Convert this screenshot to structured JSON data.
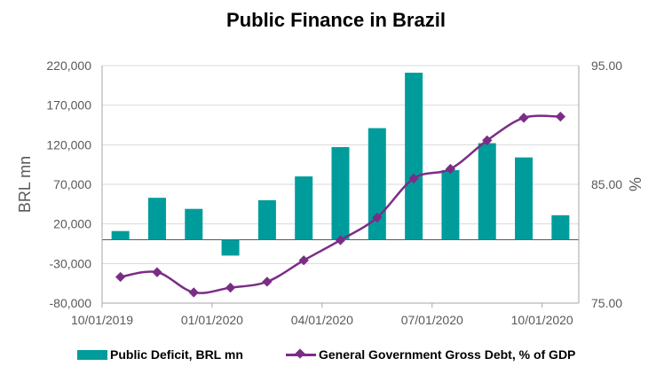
{
  "chart_data": {
    "type": "bar",
    "title": "Public Finance in Brazil",
    "ylabel": "BRL mn",
    "y2label": "%",
    "ylim": [
      -80000,
      220000
    ],
    "y_ticks": [
      "220,000",
      "170,000",
      "120,000",
      "70,000",
      "20,000",
      "-30,000",
      "-80,000"
    ],
    "y_tick_values": [
      220000,
      170000,
      120000,
      70000,
      20000,
      -30000,
      -80000
    ],
    "y2lim": [
      75,
      95
    ],
    "y2_ticks": [
      "95.00",
      "85.00",
      "75.00"
    ],
    "y2_tick_values": [
      95,
      85,
      75
    ],
    "x_ticks": [
      "10/01/2019",
      "01/01/2020",
      "04/01/2020",
      "07/01/2020",
      "10/01/2020"
    ],
    "categories": [
      "10/2019",
      "11/2019",
      "12/2019",
      "01/2020",
      "02/2020",
      "03/2020",
      "04/2020",
      "05/2020",
      "06/2020",
      "07/2020",
      "08/2020",
      "09/2020",
      "10/2020"
    ],
    "legend_position": "bottom",
    "grid": true,
    "series": [
      {
        "name": "Public Deficit, BRL mn",
        "type": "bar",
        "axis": "left",
        "color": "#009c9c",
        "values": [
          11000,
          53000,
          39000,
          -20000,
          50000,
          80000,
          117000,
          141000,
          211000,
          88000,
          122000,
          104000,
          31000
        ]
      },
      {
        "name": "General Government Gross Debt, % of GDP",
        "type": "line",
        "axis": "right",
        "color": "#7b2d86",
        "values": [
          77.2,
          77.6,
          75.9,
          76.3,
          76.8,
          78.6,
          80.3,
          82.2,
          85.5,
          86.3,
          88.7,
          90.6,
          90.7
        ]
      }
    ]
  }
}
